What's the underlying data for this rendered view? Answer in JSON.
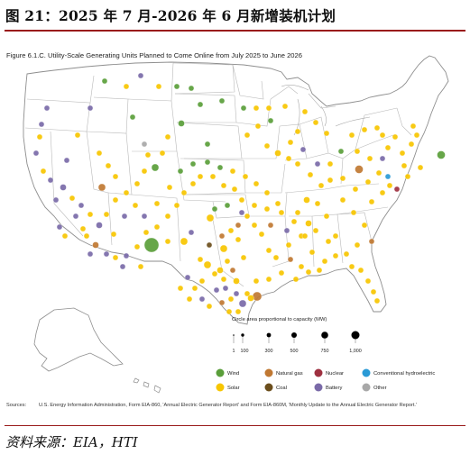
{
  "figure_title": "图 21：2025 年 7 月-2026 年 6 月新增装机计划",
  "map_title": "Figure 6.1.C. Utility-Scale Generating Units Planned to Come Online from July 2025 to June 2026",
  "size_legend": {
    "title": "Circle area proportional to capacity (MW)",
    "ticks": [
      "1",
      "100",
      "300",
      "500",
      "750",
      "1,000"
    ],
    "values_mw": [
      1,
      100,
      300,
      500,
      750,
      1000
    ]
  },
  "fuel_legend": [
    {
      "label": "Wind",
      "color": "#5a9e3a"
    },
    {
      "label": "Natural gas",
      "color": "#c07832"
    },
    {
      "label": "Nuclear",
      "color": "#9e3040"
    },
    {
      "label": "Conventional hydroelectric",
      "color": "#2a9ad6"
    },
    {
      "label": "Solar",
      "color": "#f7c600"
    },
    {
      "label": "Coal",
      "color": "#6b4e1c"
    },
    {
      "label": "Battery",
      "color": "#7a6aa8"
    },
    {
      "label": "Other",
      "color": "#a8a8a8"
    }
  ],
  "sources": {
    "label": "Sources:",
    "text": "U.S. Energy Information Administration, Form EIA-860, 'Annual Electric Generator Report' and Form EIA-860M, 'Monthly Update to the Annual Electric Generator Report.'"
  },
  "source_credit": "资料来源：EIA，HTI"
}
